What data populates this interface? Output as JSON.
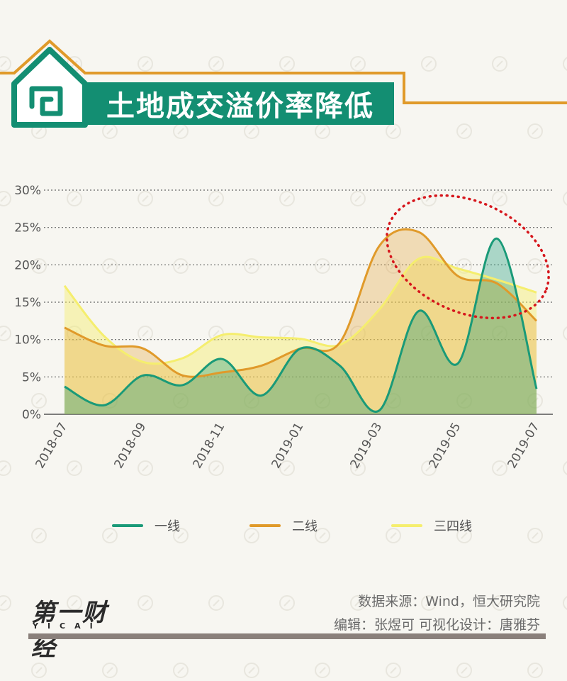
{
  "title": "土地成交溢价率降低",
  "source": "数据来源：Wind，恒大研究院",
  "editor": "编辑：张煜可   可视化设计：唐雅芬",
  "logo": {
    "main": "第一财经",
    "sub": "YICAI"
  },
  "colors": {
    "tier1": "#1a9a78",
    "tier2": "#e09a2a",
    "tier34": "#f5ee6e",
    "accent_frame": "#e09a2a",
    "title_bg": "#138e72",
    "ellipse": "#d6161c"
  },
  "chart_data": {
    "type": "area",
    "title": "土地成交溢价率降低",
    "xlabel": "",
    "ylabel": "",
    "x": [
      "2018-07",
      "2018-08",
      "2018-09",
      "2018-10",
      "2018-11",
      "2018-12",
      "2019-01",
      "2019-02",
      "2019-03",
      "2019-04",
      "2019-05",
      "2019-06",
      "2019-07"
    ],
    "x_tick_labels": [
      "2018-07",
      "2018-09",
      "2018-11",
      "2019-01",
      "2019-03",
      "2019-05",
      "2019-07"
    ],
    "y_tick_labels": [
      "0%",
      "5%",
      "10%",
      "15%",
      "20%",
      "25%",
      "30%"
    ],
    "ylim": [
      0,
      30
    ],
    "grid": "horizontal-dotted",
    "legend_position": "bottom",
    "series": [
      {
        "name": "一线",
        "values": [
          3.7,
          1.2,
          5.2,
          3.9,
          7.4,
          2.5,
          8.8,
          6.5,
          0.5,
          13.8,
          6.8,
          23.5,
          3.4
        ]
      },
      {
        "name": "二线",
        "values": [
          11.6,
          9.2,
          8.8,
          5.2,
          5.6,
          6.5,
          8.8,
          9.6,
          22.5,
          24.4,
          18.5,
          17.5,
          12.5
        ]
      },
      {
        "name": "三四线",
        "values": [
          17.2,
          10.5,
          7.0,
          7.5,
          10.6,
          10.3,
          10.1,
          9.3,
          14.0,
          20.8,
          19.5,
          18.0,
          16.3
        ]
      }
    ],
    "annotations": [
      {
        "type": "ellipse",
        "target": "2019-03 to 2019-07 peak region"
      }
    ]
  }
}
